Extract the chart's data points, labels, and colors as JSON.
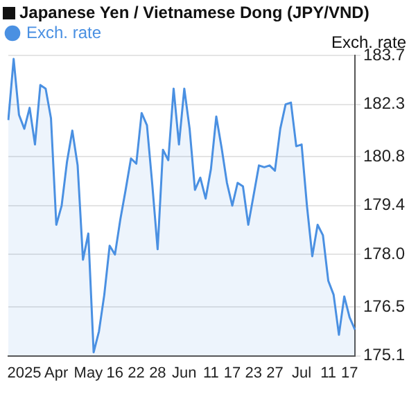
{
  "chart_data": {
    "type": "area",
    "title": "Japanese Yen / Vietnamese Dong (JPY/VND)",
    "ylabel": "Exch. rate",
    "categories": [
      null,
      null,
      null,
      "2025",
      null,
      null,
      null,
      null,
      null,
      "Apr",
      null,
      null,
      null,
      null,
      null,
      "May",
      null,
      null,
      null,
      null,
      "16",
      null,
      null,
      null,
      "22",
      null,
      null,
      null,
      "28",
      null,
      null,
      null,
      null,
      "Jun",
      null,
      null,
      null,
      null,
      "11",
      null,
      null,
      null,
      "17",
      null,
      null,
      null,
      "23",
      null,
      null,
      null,
      "27",
      null,
      null,
      null,
      null,
      "Jul",
      null,
      null,
      null,
      null,
      "11",
      null,
      null,
      null,
      "17",
      null
    ],
    "series": [
      {
        "name": "Exch. rate",
        "color": "#4a90e2",
        "values": [
          181.85,
          183.6,
          182.0,
          181.6,
          182.2,
          181.15,
          182.85,
          182.75,
          181.9,
          178.85,
          179.4,
          180.65,
          181.55,
          180.55,
          177.85,
          178.6,
          175.2,
          175.8,
          176.85,
          178.25,
          178.0,
          179.0,
          179.85,
          180.75,
          180.6,
          182.05,
          181.7,
          180.0,
          178.15,
          181.0,
          180.7,
          182.75,
          181.15,
          182.75,
          181.6,
          179.85,
          180.2,
          179.6,
          180.45,
          181.95,
          181.05,
          180.05,
          179.4,
          180.05,
          179.95,
          178.85,
          179.7,
          180.55,
          180.5,
          180.55,
          180.4,
          181.6,
          182.3,
          182.35,
          181.1,
          181.15,
          179.4,
          177.95,
          178.85,
          178.55,
          177.25,
          176.85,
          175.7,
          176.8,
          176.2,
          175.85
        ]
      }
    ],
    "ylim": [
      175.1,
      183.7
    ],
    "yticks": [
      175.1,
      176.5,
      {
        "value": 178,
        "label": "178.0"
      },
      179.4,
      180.8,
      182.3,
      183.7
    ],
    "grid": "y",
    "legend": "top left",
    "marker": "none",
    "line_style": "solid"
  }
}
